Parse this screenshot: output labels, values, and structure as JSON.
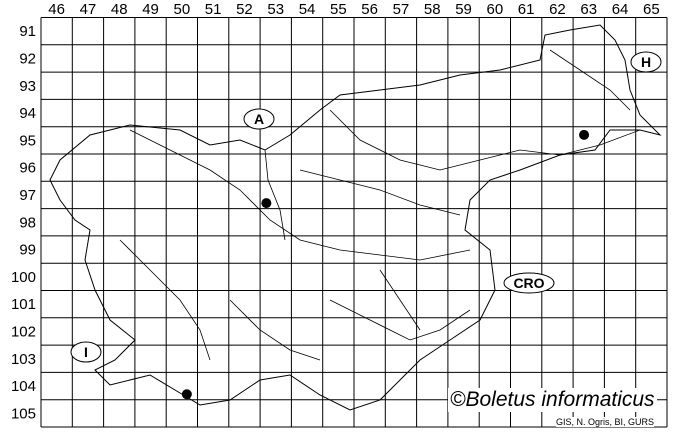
{
  "map": {
    "columns": [
      "46",
      "47",
      "48",
      "49",
      "50",
      "51",
      "52",
      "53",
      "54",
      "55",
      "56",
      "57",
      "58",
      "59",
      "60",
      "61",
      "62",
      "63",
      "64",
      "65"
    ],
    "rows": [
      "91",
      "92",
      "93",
      "94",
      "95",
      "96",
      "97",
      "98",
      "99",
      "100",
      "101",
      "102",
      "103",
      "104",
      "105"
    ],
    "records": [
      {
        "col": "53",
        "row": "97"
      },
      {
        "col": "63",
        "row": "95"
      },
      {
        "col": "50",
        "row": "104"
      }
    ],
    "country_labels": [
      {
        "text": "A"
      },
      {
        "text": "H"
      },
      {
        "text": "CRO"
      },
      {
        "text": "I"
      }
    ],
    "colors": {
      "grid": "#000000",
      "border": "#000000",
      "record": "#000000"
    }
  },
  "credit": "©Boletus informaticus",
  "source": "GIS, N. Ogris, BI, GURS"
}
